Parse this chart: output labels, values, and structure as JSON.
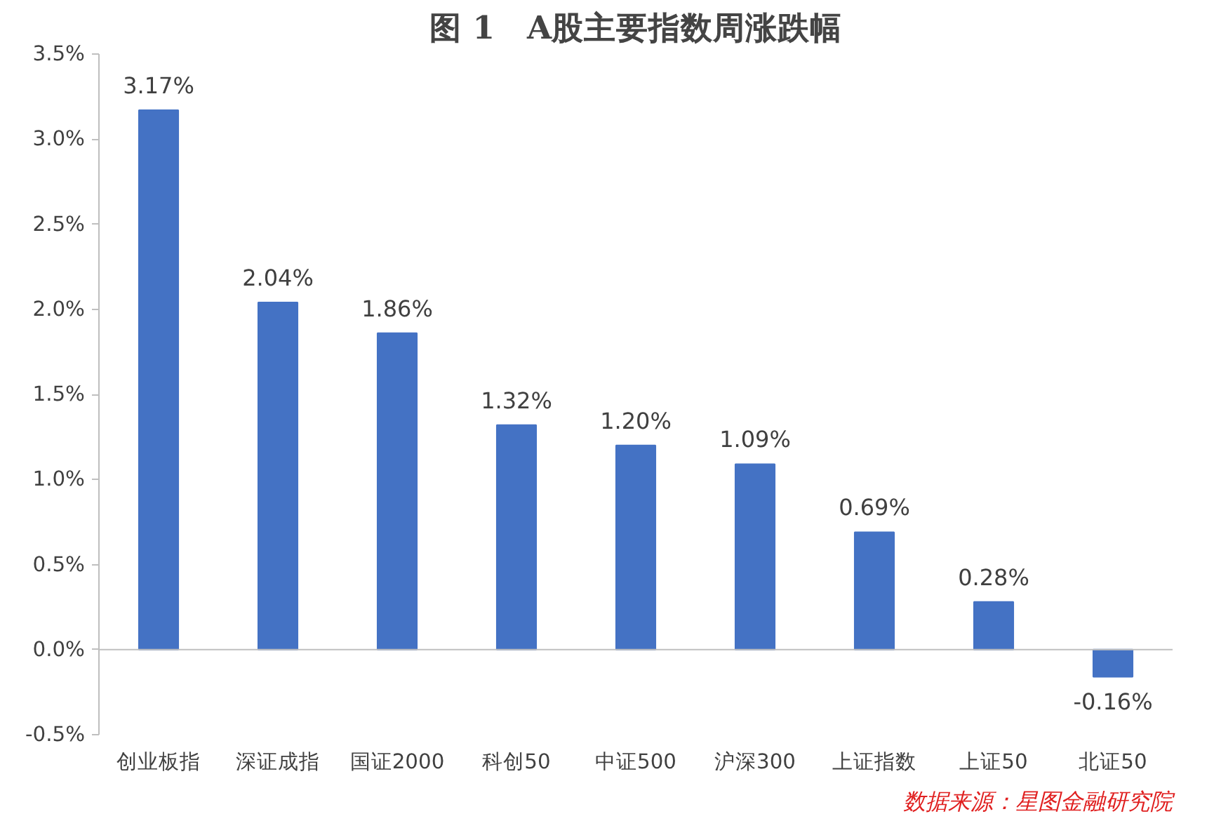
{
  "chart_data": {
    "type": "bar",
    "title": "图 1　A股主要指数周涨跌幅",
    "categories": [
      "创业板指",
      "深证成指",
      "国证2000",
      "科创50",
      "中证500",
      "沪深300",
      "上证指数",
      "上证50",
      "北证50"
    ],
    "values": [
      3.17,
      2.04,
      1.86,
      1.32,
      1.2,
      1.09,
      0.69,
      0.28,
      -0.16
    ],
    "value_labels": [
      "3.17%",
      "2.04%",
      "1.86%",
      "1.32%",
      "1.20%",
      "1.09%",
      "0.69%",
      "0.28%",
      "-0.16%"
    ],
    "color": "#4472c4",
    "ylim": [
      -0.5,
      3.5
    ],
    "yticks": [
      {
        "value": -0.5,
        "label": "-0.5%"
      },
      {
        "value": 0,
        "label": "0.0%"
      },
      {
        "value": 0.5,
        "label": "0.5%"
      },
      {
        "value": 1,
        "label": "1.0%"
      },
      {
        "value": 1.5,
        "label": "1.5%"
      },
      {
        "value": 2,
        "label": "2.0%"
      },
      {
        "value": 2.5,
        "label": "2.5%"
      },
      {
        "value": 3,
        "label": "3.0%"
      },
      {
        "value": 3.5,
        "label": "3.5%"
      }
    ],
    "annotations": [
      "数据来源：星图金融研究院"
    ]
  }
}
